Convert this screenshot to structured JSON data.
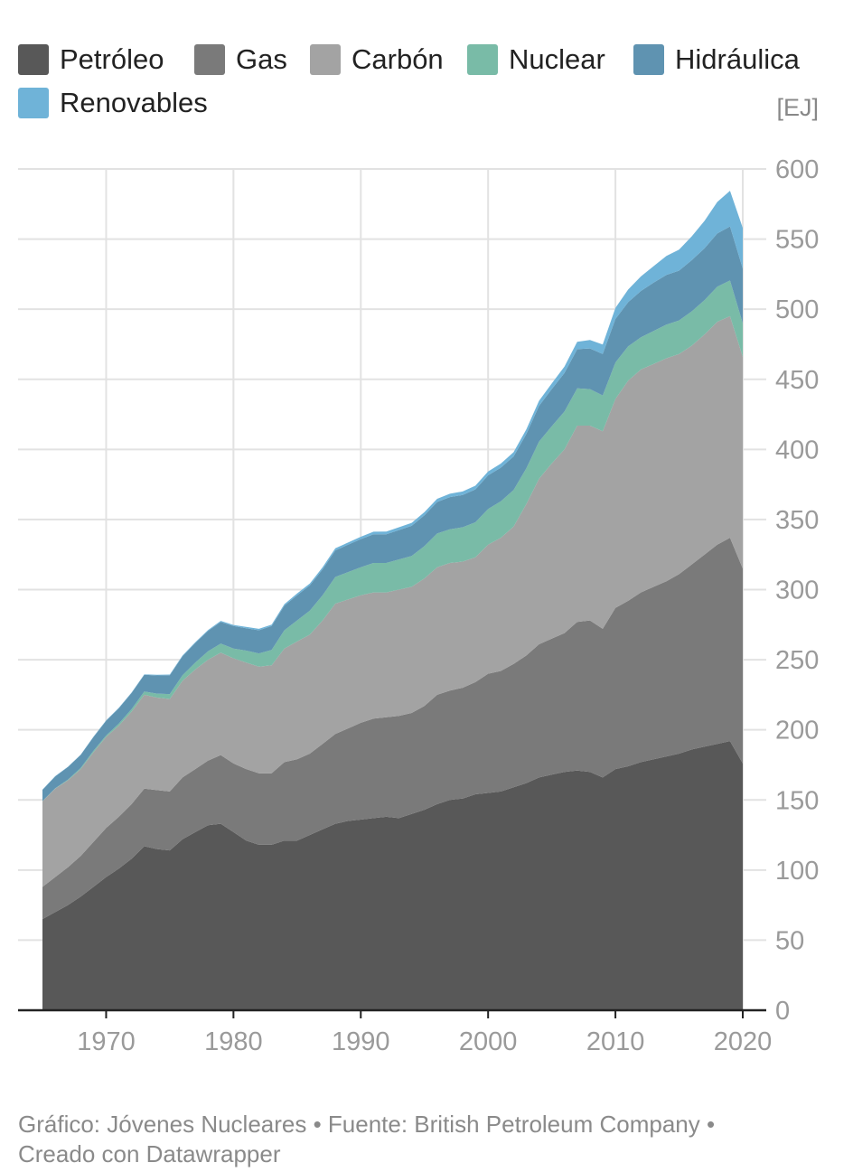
{
  "legend": {
    "items": [
      {
        "label": "Petróleo",
        "color": "#585858"
      },
      {
        "label": "Gas",
        "color": "#7a7a7a"
      },
      {
        "label": "Carbón",
        "color": "#a3a3a3"
      },
      {
        "label": "Nuclear",
        "color": "#79bba7"
      },
      {
        "label": "Hidráulica",
        "color": "#5f93b1"
      },
      {
        "label": "Renovables",
        "color": "#6fb3d8"
      }
    ]
  },
  "unit_label": "[EJ]",
  "footer": {
    "line1": "Gráfico: Jóvenes Nucleares • Fuente: British Petroleum Company •",
    "line2": "Creado con Datawrapper"
  },
  "chart_data": {
    "type": "area",
    "stacked": true,
    "ylabel": "[EJ]",
    "ylim": [
      0,
      600
    ],
    "yticks": [
      0,
      50,
      100,
      150,
      200,
      250,
      300,
      350,
      400,
      450,
      500,
      550,
      600
    ],
    "xlim": [
      1965,
      2020
    ],
    "xticks": [
      1970,
      1980,
      1990,
      2000,
      2010,
      2020
    ],
    "grid": true,
    "legend_position": "top",
    "x": [
      1965,
      1966,
      1967,
      1968,
      1969,
      1970,
      1971,
      1972,
      1973,
      1974,
      1975,
      1976,
      1977,
      1978,
      1979,
      1980,
      1981,
      1982,
      1983,
      1984,
      1985,
      1986,
      1987,
      1988,
      1989,
      1990,
      1991,
      1992,
      1993,
      1994,
      1995,
      1996,
      1997,
      1998,
      1999,
      2000,
      2001,
      2002,
      2003,
      2004,
      2005,
      2006,
      2007,
      2008,
      2009,
      2010,
      2011,
      2012,
      2013,
      2014,
      2015,
      2016,
      2017,
      2018,
      2019,
      2020
    ],
    "series": [
      {
        "name": "Petróleo",
        "values": [
          65,
          70,
          75,
          81,
          88,
          95,
          101,
          108,
          117,
          115,
          114,
          122,
          127,
          132,
          133,
          127,
          121,
          118,
          118,
          121,
          121,
          125,
          129,
          133,
          135,
          136,
          137,
          138,
          137,
          140,
          143,
          147,
          150,
          151,
          154,
          155,
          156,
          159,
          162,
          166,
          168,
          170,
          171,
          170,
          166,
          172,
          174,
          177,
          179,
          181,
          183,
          186,
          188,
          190,
          192,
          176
        ]
      },
      {
        "name": "Gas",
        "values": [
          23,
          25,
          27,
          29,
          32,
          35,
          37,
          39,
          41,
          42,
          42,
          44,
          45,
          46,
          49,
          49,
          51,
          51,
          51,
          56,
          58,
          58,
          61,
          64,
          66,
          69,
          71,
          71,
          73,
          72,
          74,
          78,
          78,
          79,
          80,
          85,
          86,
          88,
          91,
          95,
          97,
          99,
          106,
          108,
          106,
          115,
          118,
          121,
          123,
          125,
          128,
          132,
          137,
          142,
          145,
          139
        ]
      },
      {
        "name": "Carbón",
        "values": [
          61,
          63,
          62,
          62,
          64,
          65,
          65,
          66,
          67,
          66,
          66,
          69,
          71,
          72,
          73,
          75,
          76,
          76,
          77,
          81,
          84,
          85,
          88,
          93,
          92,
          91,
          90,
          89,
          90,
          90,
          91,
          91,
          91,
          90,
          89,
          92,
          95,
          98,
          108,
          118,
          125,
          131,
          140,
          139,
          141,
          149,
          157,
          159,
          159,
          159,
          157,
          156,
          157,
          159,
          158,
          151
        ]
      },
      {
        "name": "Nuclear",
        "values": [
          0.2,
          0.3,
          0.5,
          0.8,
          1,
          1,
          1.4,
          1.8,
          2.3,
          2.8,
          3.5,
          4,
          5,
          6,
          6.5,
          7,
          8.5,
          9.5,
          11,
          13,
          15,
          17,
          18,
          19,
          19.5,
          20,
          21,
          21,
          21.5,
          22,
          23,
          24,
          24,
          24.5,
          25,
          25.5,
          26,
          26,
          25.5,
          26.5,
          26.5,
          27,
          26.5,
          26,
          25.5,
          26,
          24.5,
          23,
          23.5,
          24,
          24,
          24.5,
          24.5,
          25,
          25.5,
          24
        ]
      },
      {
        "name": "Hidráulica",
        "values": [
          8,
          8.5,
          9,
          9.3,
          9.8,
          10.5,
          11,
          11.5,
          12,
          13,
          13.5,
          13.5,
          14,
          14.5,
          15.5,
          16,
          16,
          16.5,
          17,
          17.5,
          18,
          18,
          18.5,
          19,
          19.5,
          20,
          20.5,
          20.5,
          21,
          21.5,
          22,
          22.5,
          23,
          23,
          23.5,
          24,
          24,
          24,
          24.5,
          25.5,
          26.5,
          27.5,
          28,
          29,
          29.5,
          31,
          31.5,
          33,
          34.5,
          35.5,
          35.5,
          36.5,
          37,
          38,
          38.5,
          39
        ]
      },
      {
        "name": "Renovables",
        "values": [
          0.2,
          0.2,
          0.2,
          0.2,
          0.3,
          0.3,
          0.3,
          0.3,
          0.3,
          0.4,
          0.4,
          0.5,
          0.5,
          0.6,
          0.7,
          0.8,
          0.9,
          1,
          1,
          1.1,
          1.2,
          1.3,
          1.4,
          1.5,
          1.6,
          1.7,
          1.8,
          1.9,
          2,
          2.1,
          2.2,
          2.3,
          2.4,
          2.5,
          2.6,
          2.8,
          2.9,
          3,
          3.3,
          3.6,
          4,
          4.6,
          5.3,
          6,
          6.8,
          7.9,
          9,
          10.4,
          11.7,
          13.5,
          15,
          17,
          19.5,
          22.5,
          25.5,
          29
        ]
      }
    ]
  }
}
